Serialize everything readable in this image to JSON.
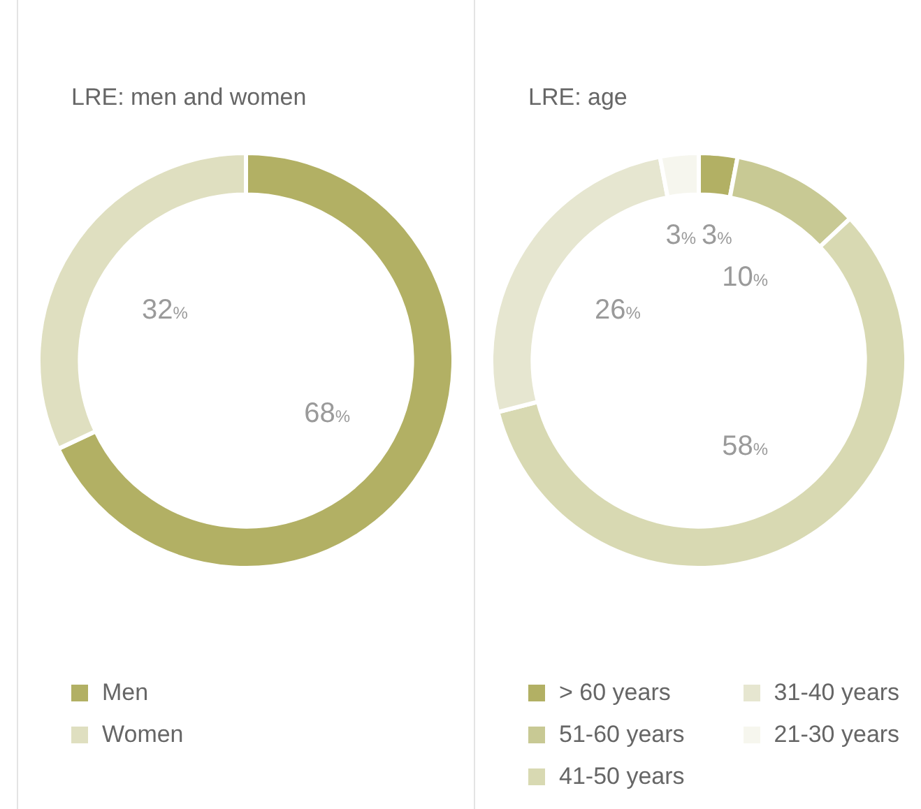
{
  "chart_data": [
    {
      "type": "donut",
      "title": "LRE: men and women",
      "categories": [
        "Men",
        "Women"
      ],
      "values": [
        68,
        32
      ],
      "colors": [
        "#b2b064",
        "#dfdfc0"
      ],
      "value_labels": [
        "68%",
        "32%"
      ],
      "legend": "bottom"
    },
    {
      "type": "donut",
      "title": "LRE: age",
      "categories": [
        "> 60 years",
        "51-60 years",
        "41-50 years",
        "31-40 years",
        "21-30 years"
      ],
      "values": [
        3,
        10,
        58,
        26,
        3
      ],
      "colors": [
        "#b2b064",
        "#c8c994",
        "#d8d9b2",
        "#e6e6d0",
        "#f6f6ee"
      ],
      "value_labels": [
        "3%",
        "10%",
        "58%",
        "26%",
        "3%"
      ],
      "legend": "bottom"
    }
  ]
}
